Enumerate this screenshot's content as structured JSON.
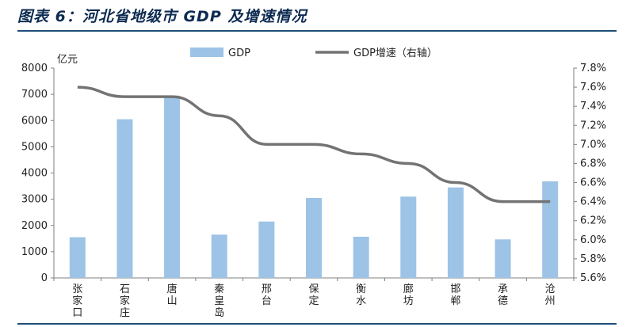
{
  "figure": {
    "title": "图表 6：河北省地级市 GDP 及增速情况"
  },
  "colors": {
    "bar": "#9dc3e6",
    "line": "#737373",
    "rule": "#1f4e79",
    "title": "#0d2b52"
  },
  "chart_data": {
    "type": "bar",
    "categories": [
      "张家口",
      "石家庄",
      "唐山",
      "秦皇岛",
      "邢台",
      "保定",
      "衡水",
      "廊坊",
      "邯郸",
      "承德",
      "沧州"
    ],
    "series": [
      {
        "name": "GDP",
        "type": "bar",
        "axis": "left",
        "values": [
          1550,
          6050,
          6950,
          1650,
          2150,
          3050,
          1570,
          3100,
          3450,
          1470,
          3680
        ]
      },
      {
        "name": "GDP增速（右轴）",
        "type": "line",
        "axis": "right",
        "values": [
          7.6,
          7.5,
          7.5,
          7.3,
          7.0,
          7.0,
          6.9,
          6.8,
          6.6,
          6.4,
          6.4
        ]
      }
    ],
    "ylabel": "亿元",
    "ylim": [
      0,
      8000
    ],
    "yticks": [
      "0",
      "1000",
      "2000",
      "3000",
      "4000",
      "5000",
      "6000",
      "7000",
      "8000"
    ],
    "y2lim": [
      5.6,
      7.8
    ],
    "y2ticks": [
      "5.6%",
      "5.8%",
      "6.0%",
      "6.2%",
      "6.4%",
      "6.6%",
      "6.8%",
      "7.0%",
      "7.2%",
      "7.4%",
      "7.6%",
      "7.8%"
    ],
    "legend": "top",
    "grid": false
  }
}
